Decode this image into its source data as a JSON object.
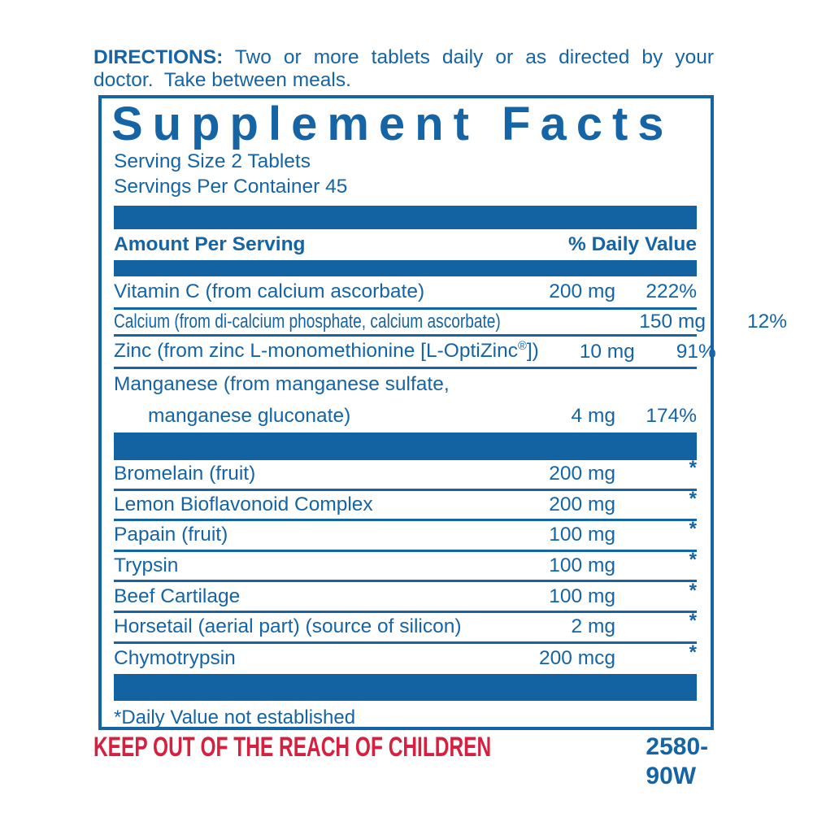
{
  "colors": {
    "blue": "#1464A6",
    "bar_blue": "#1362A2",
    "red": "#D7203F"
  },
  "directions": {
    "label": "DIRECTIONS:",
    "line1": "Two or more tablets daily or as directed by your",
    "line2": "doctor.  Take between meals."
  },
  "panel": {
    "title": "Supplement Facts",
    "serving_size": "Serving Size 2 Tablets",
    "servings_per_container": "Servings Per Container 45",
    "header": {
      "amount": "Amount Per Serving",
      "daily_value": "% Daily Value"
    },
    "sections": [
      {
        "rows": [
          {
            "name": "Vitamin C (from calcium ascorbate)",
            "amount": "200 mg",
            "dv": "222%",
            "h": 41
          },
          {
            "name": "Calcium (from di-calcium phosphate, calcium ascorbate)",
            "amount": "150 mg",
            "dv": "12%",
            "condensed": true,
            "h": 33
          },
          {
            "name": "Zinc (from zinc L-monomethionine [L-OptiZinc®])",
            "amount": "10 mg",
            "dv": "91%",
            "h": 40
          },
          {
            "name": "Manganese (from manganese sulfate,",
            "name2": "manganese gluconate)",
            "amount": "4 mg",
            "dv": "174%",
            "twoLine": true,
            "h": 78
          }
        ]
      },
      {
        "rows": [
          {
            "name": "Bromelain (fruit)",
            "amount": "200 mg",
            "dv": "*",
            "h": 37.6
          },
          {
            "name": "Lemon Bioflavonoid Complex",
            "amount": "200 mg",
            "dv": "*",
            "h": 37.6
          },
          {
            "name": "Papain (fruit)",
            "amount": "100 mg",
            "dv": "*",
            "h": 37.6
          },
          {
            "name": "Trypsin",
            "amount": "100 mg",
            "dv": "*",
            "h": 37.6
          },
          {
            "name": "Beef Cartilage",
            "amount": "100 mg",
            "dv": "*",
            "h": 37.6
          },
          {
            "name": "Horsetail (aerial part) (source of silicon)",
            "amount": "2 mg",
            "dv": "*",
            "h": 37.6
          },
          {
            "name": "Chymotrypsin",
            "amount": "200 mcg",
            "dv": "*",
            "h": 37.6
          }
        ]
      }
    ],
    "footnote": "*Daily Value not established"
  },
  "footer": {
    "warning": "KEEP OUT OF THE REACH OF CHILDREN",
    "code": "2580-90W"
  }
}
